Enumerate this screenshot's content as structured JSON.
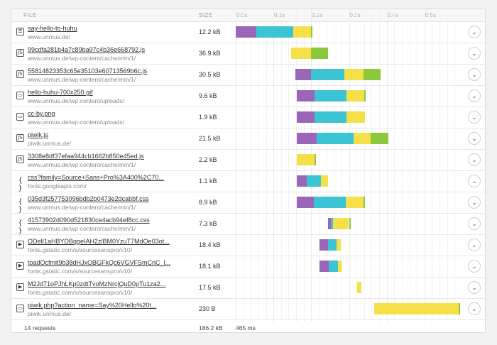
{
  "header": {
    "file": "FILE",
    "size": "SIZE"
  },
  "timeline": {
    "max_s": 0.6,
    "ticks": [
      "0.0s",
      "0.1s",
      "0.2s",
      "0.3s",
      "0.4s",
      "0.5s"
    ]
  },
  "colors": {
    "blocking": "#9b66b8",
    "connect": "#3cc3d4",
    "wait": "#f6e04a",
    "receive": "#8cc83c"
  },
  "requests": [
    {
      "name": "say-hello-to-huhu",
      "host": "www.unmus.de/",
      "size": "12.2 kB",
      "type": "html",
      "icon": "document-icon",
      "timing": [
        {
          "phase": "blocking",
          "start": 0.0,
          "end": 0.054
        },
        {
          "phase": "connect",
          "start": 0.054,
          "end": 0.152
        },
        {
          "phase": "wait",
          "start": 0.152,
          "end": 0.2
        },
        {
          "phase": "receive",
          "start": 0.2,
          "end": 0.203
        }
      ]
    },
    {
      "name": "99cdfa281b4a7c89ba97c4b36e668792.js",
      "host": "www.unmus.de/wp-content/cache/min/1/",
      "size": "36.9 kB",
      "type": "js",
      "icon": "js-file-icon",
      "timing": [
        {
          "phase": "wait",
          "start": 0.146,
          "end": 0.2
        },
        {
          "phase": "receive",
          "start": 0.2,
          "end": 0.244
        }
      ]
    },
    {
      "name": "55814823353c65e35103e60713569b6c.js",
      "host": "www.unmus.de/wp-content/cache/min/1/",
      "size": "30.5 kB",
      "type": "js",
      "icon": "js-file-icon",
      "timing": [
        {
          "phase": "blocking",
          "start": 0.158,
          "end": 0.2
        },
        {
          "phase": "connect",
          "start": 0.2,
          "end": 0.288
        },
        {
          "phase": "wait",
          "start": 0.288,
          "end": 0.338
        },
        {
          "phase": "receive",
          "start": 0.338,
          "end": 0.383
        }
      ]
    },
    {
      "name": "hello-huhu-700x250.gif",
      "host": "www.unmus.de/wp-content/uploads/",
      "size": "9.6 kB",
      "type": "img",
      "icon": "image-icon",
      "timing": [
        {
          "phase": "blocking",
          "start": 0.162,
          "end": 0.208
        },
        {
          "phase": "connect",
          "start": 0.208,
          "end": 0.293
        },
        {
          "phase": "wait",
          "start": 0.293,
          "end": 0.34
        },
        {
          "phase": "receive",
          "start": 0.34,
          "end": 0.342
        }
      ]
    },
    {
      "name": "cc-by.png",
      "host": "www.unmus.de/wp-content/uploads/",
      "size": "1.9 kB",
      "type": "img",
      "icon": "image-icon",
      "timing": [
        {
          "phase": "blocking",
          "start": 0.162,
          "end": 0.208
        },
        {
          "phase": "connect",
          "start": 0.208,
          "end": 0.293
        },
        {
          "phase": "wait",
          "start": 0.293,
          "end": 0.342
        }
      ]
    },
    {
      "name": "piwik.js",
      "host": "piwik.unmus.de/",
      "size": "21.5 kB",
      "type": "js",
      "icon": "js-file-icon",
      "timing": [
        {
          "phase": "blocking",
          "start": 0.162,
          "end": 0.214
        },
        {
          "phase": "connect",
          "start": 0.214,
          "end": 0.312
        },
        {
          "phase": "wait",
          "start": 0.312,
          "end": 0.358
        },
        {
          "phase": "receive",
          "start": 0.358,
          "end": 0.404
        }
      ]
    },
    {
      "name": "3308e8df37efaa944cb1662b850e45ed.js",
      "host": "www.unmus.de/wp-content/cache/min/1/",
      "size": "2.2 kB",
      "type": "js",
      "icon": "js-file-icon",
      "timing": [
        {
          "phase": "wait",
          "start": 0.162,
          "end": 0.208
        },
        {
          "phase": "receive",
          "start": 0.208,
          "end": 0.21
        }
      ]
    },
    {
      "name": "css?family=Source+Sans+Pro%3A400%2C70...",
      "host": "fonts.googleapis.com/",
      "size": "1.1 kB",
      "type": "css",
      "icon": "css-file-icon",
      "timing": [
        {
          "phase": "blocking",
          "start": 0.162,
          "end": 0.188
        },
        {
          "phase": "connect",
          "start": 0.188,
          "end": 0.226
        },
        {
          "phase": "wait",
          "start": 0.226,
          "end": 0.244
        }
      ]
    },
    {
      "name": "035d3f257753096bdb2b0473e2dcabbf.css",
      "host": "www.unmus.de/wp-content/cache/min/1/",
      "size": "8.9 kB",
      "type": "css",
      "icon": "css-file-icon",
      "timing": [
        {
          "phase": "blocking",
          "start": 0.162,
          "end": 0.206
        },
        {
          "phase": "connect",
          "start": 0.206,
          "end": 0.292
        },
        {
          "phase": "wait",
          "start": 0.292,
          "end": 0.338
        },
        {
          "phase": "receive",
          "start": 0.338,
          "end": 0.341
        }
      ]
    },
    {
      "name": "41573902d090d521830ce4acb94ef8cc.css",
      "host": "www.unmus.de/wp-content/cache/min/1/",
      "size": "7.3 kB",
      "type": "css",
      "icon": "css-file-icon",
      "timing": [
        {
          "phase": "blocking",
          "start": 0.244,
          "end": 0.252
        },
        {
          "phase": "connect",
          "start": 0.252,
          "end": 0.258
        },
        {
          "phase": "wait",
          "start": 0.258,
          "end": 0.3
        },
        {
          "phase": "receive",
          "start": 0.3,
          "end": 0.303
        }
      ]
    },
    {
      "name": "ODelI1aHBYDBqgeIAH2zlBM0YzuT7MdOe03ot...",
      "host": "fonts.gstatic.com/s/sourcesanspro/v10/",
      "size": "18.4 kB",
      "type": "font",
      "icon": "font-file-icon",
      "timing": [
        {
          "phase": "blocking",
          "start": 0.222,
          "end": 0.245
        },
        {
          "phase": "connect",
          "start": 0.245,
          "end": 0.268
        },
        {
          "phase": "wait",
          "start": 0.268,
          "end": 0.279
        }
      ]
    },
    {
      "name": "toadOcfmlt9b38dHJxOBGFkQc6VGVFSmCnC_l...",
      "host": "fonts.gstatic.com/s/sourcesanspro/v10/",
      "size": "18.1 kB",
      "type": "font",
      "icon": "font-file-icon",
      "timing": [
        {
          "phase": "blocking",
          "start": 0.222,
          "end": 0.246
        },
        {
          "phase": "connect",
          "start": 0.246,
          "end": 0.27
        },
        {
          "phase": "wait",
          "start": 0.27,
          "end": 0.28
        }
      ]
    },
    {
      "name": "M2Jd71oPJhLKp0zdtTvoMzNrcjQuD0pTu1za2...",
      "host": "fonts.gstatic.com/s/sourcesanspro/v10/",
      "size": "17.5 kB",
      "type": "font",
      "icon": "font-file-icon",
      "timing": [
        {
          "phase": "wait",
          "start": 0.322,
          "end": 0.333
        }
      ]
    },
    {
      "name": "piwik.php?action_name=Say%20Hello%20t...",
      "host": "piwik.unmus.de/",
      "size": "230 B",
      "type": "img",
      "icon": "image-icon",
      "timing": [
        {
          "phase": "wait",
          "start": 0.366,
          "end": 0.59
        },
        {
          "phase": "receive",
          "start": 0.59,
          "end": 0.592
        }
      ]
    }
  ],
  "footer": {
    "requests": "14 requests",
    "total_size": "186.2 kB",
    "total_time": "465 ms"
  }
}
